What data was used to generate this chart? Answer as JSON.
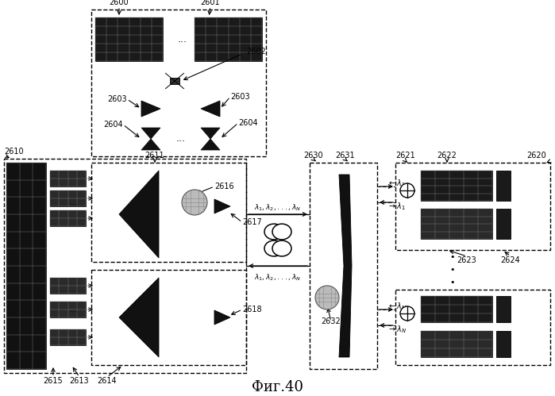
{
  "title": "Фиг.40",
  "bg_color": "#ffffff",
  "fig_width": 6.99,
  "fig_height": 4.99,
  "dpi": 100
}
